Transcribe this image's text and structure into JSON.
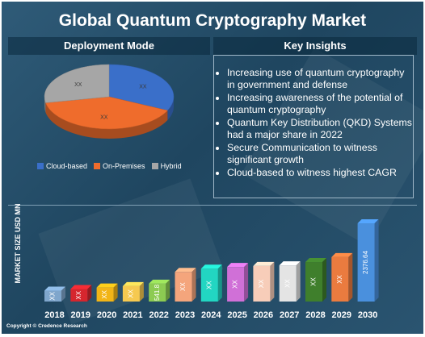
{
  "title": "Global Quantum Cryptography Market",
  "pie_panel_title": "Deployment Mode",
  "insights_panel_title": "Key Insights",
  "insights": [
    "Increasing use of quantum cryptography in government and defense",
    "Increasing awareness of the potential of quantum cryptography",
    "Quantum Key Distribution (QKD) Systems had a major share in 2022",
    "Secure Communication to witness significant growth",
    "Cloud-based to witness highest CAGR"
  ],
  "colors": {
    "background": "#244c66",
    "cloud": "#3a6fc9",
    "onprem": "#ef6c2c",
    "hybrid": "#a6a6a6"
  },
  "copyright": "Copyright © Credence Research",
  "chart_data": [
    {
      "type": "pie",
      "title": "Deployment Mode",
      "slices": [
        {
          "name": "Cloud-based",
          "value": 32,
          "label": "XX",
          "color": "#3a6fc9"
        },
        {
          "name": "On-Premises",
          "value": 40,
          "label": "XX",
          "color": "#ef6c2c"
        },
        {
          "name": "Hybrid",
          "value": 28,
          "label": "XX",
          "color": "#a6a6a6"
        }
      ],
      "legend": "bottom"
    },
    {
      "type": "bar",
      "ylabel": "MARKET SIZE USD MN",
      "categories": [
        "2018",
        "2019",
        "2020",
        "2021",
        "2022",
        "2023",
        "2024",
        "2025",
        "2026",
        "2027",
        "2028",
        "2029",
        "2030"
      ],
      "values": [
        330,
        380,
        425,
        470,
        541.8,
        900,
        1000,
        1050,
        1080,
        1100,
        1200,
        1350,
        2376.64
      ],
      "labels": [
        "XX",
        "XX",
        "XX",
        "XX",
        "541.8",
        "XX",
        "XX",
        "XX",
        "XX",
        "XX",
        "XX",
        "XX",
        "2376.64"
      ],
      "colors": [
        "#7fa6cc",
        "#d6262e",
        "#f2b517",
        "#f6c950",
        "#8ccb52",
        "#f4a57c",
        "#22d6c2",
        "#d070d7",
        "#f7cdb9",
        "#e4e4e4",
        "#3f7f2c",
        "#ea7b3f",
        "#4a90dd"
      ],
      "ylim": [
        0,
        2500
      ]
    }
  ]
}
